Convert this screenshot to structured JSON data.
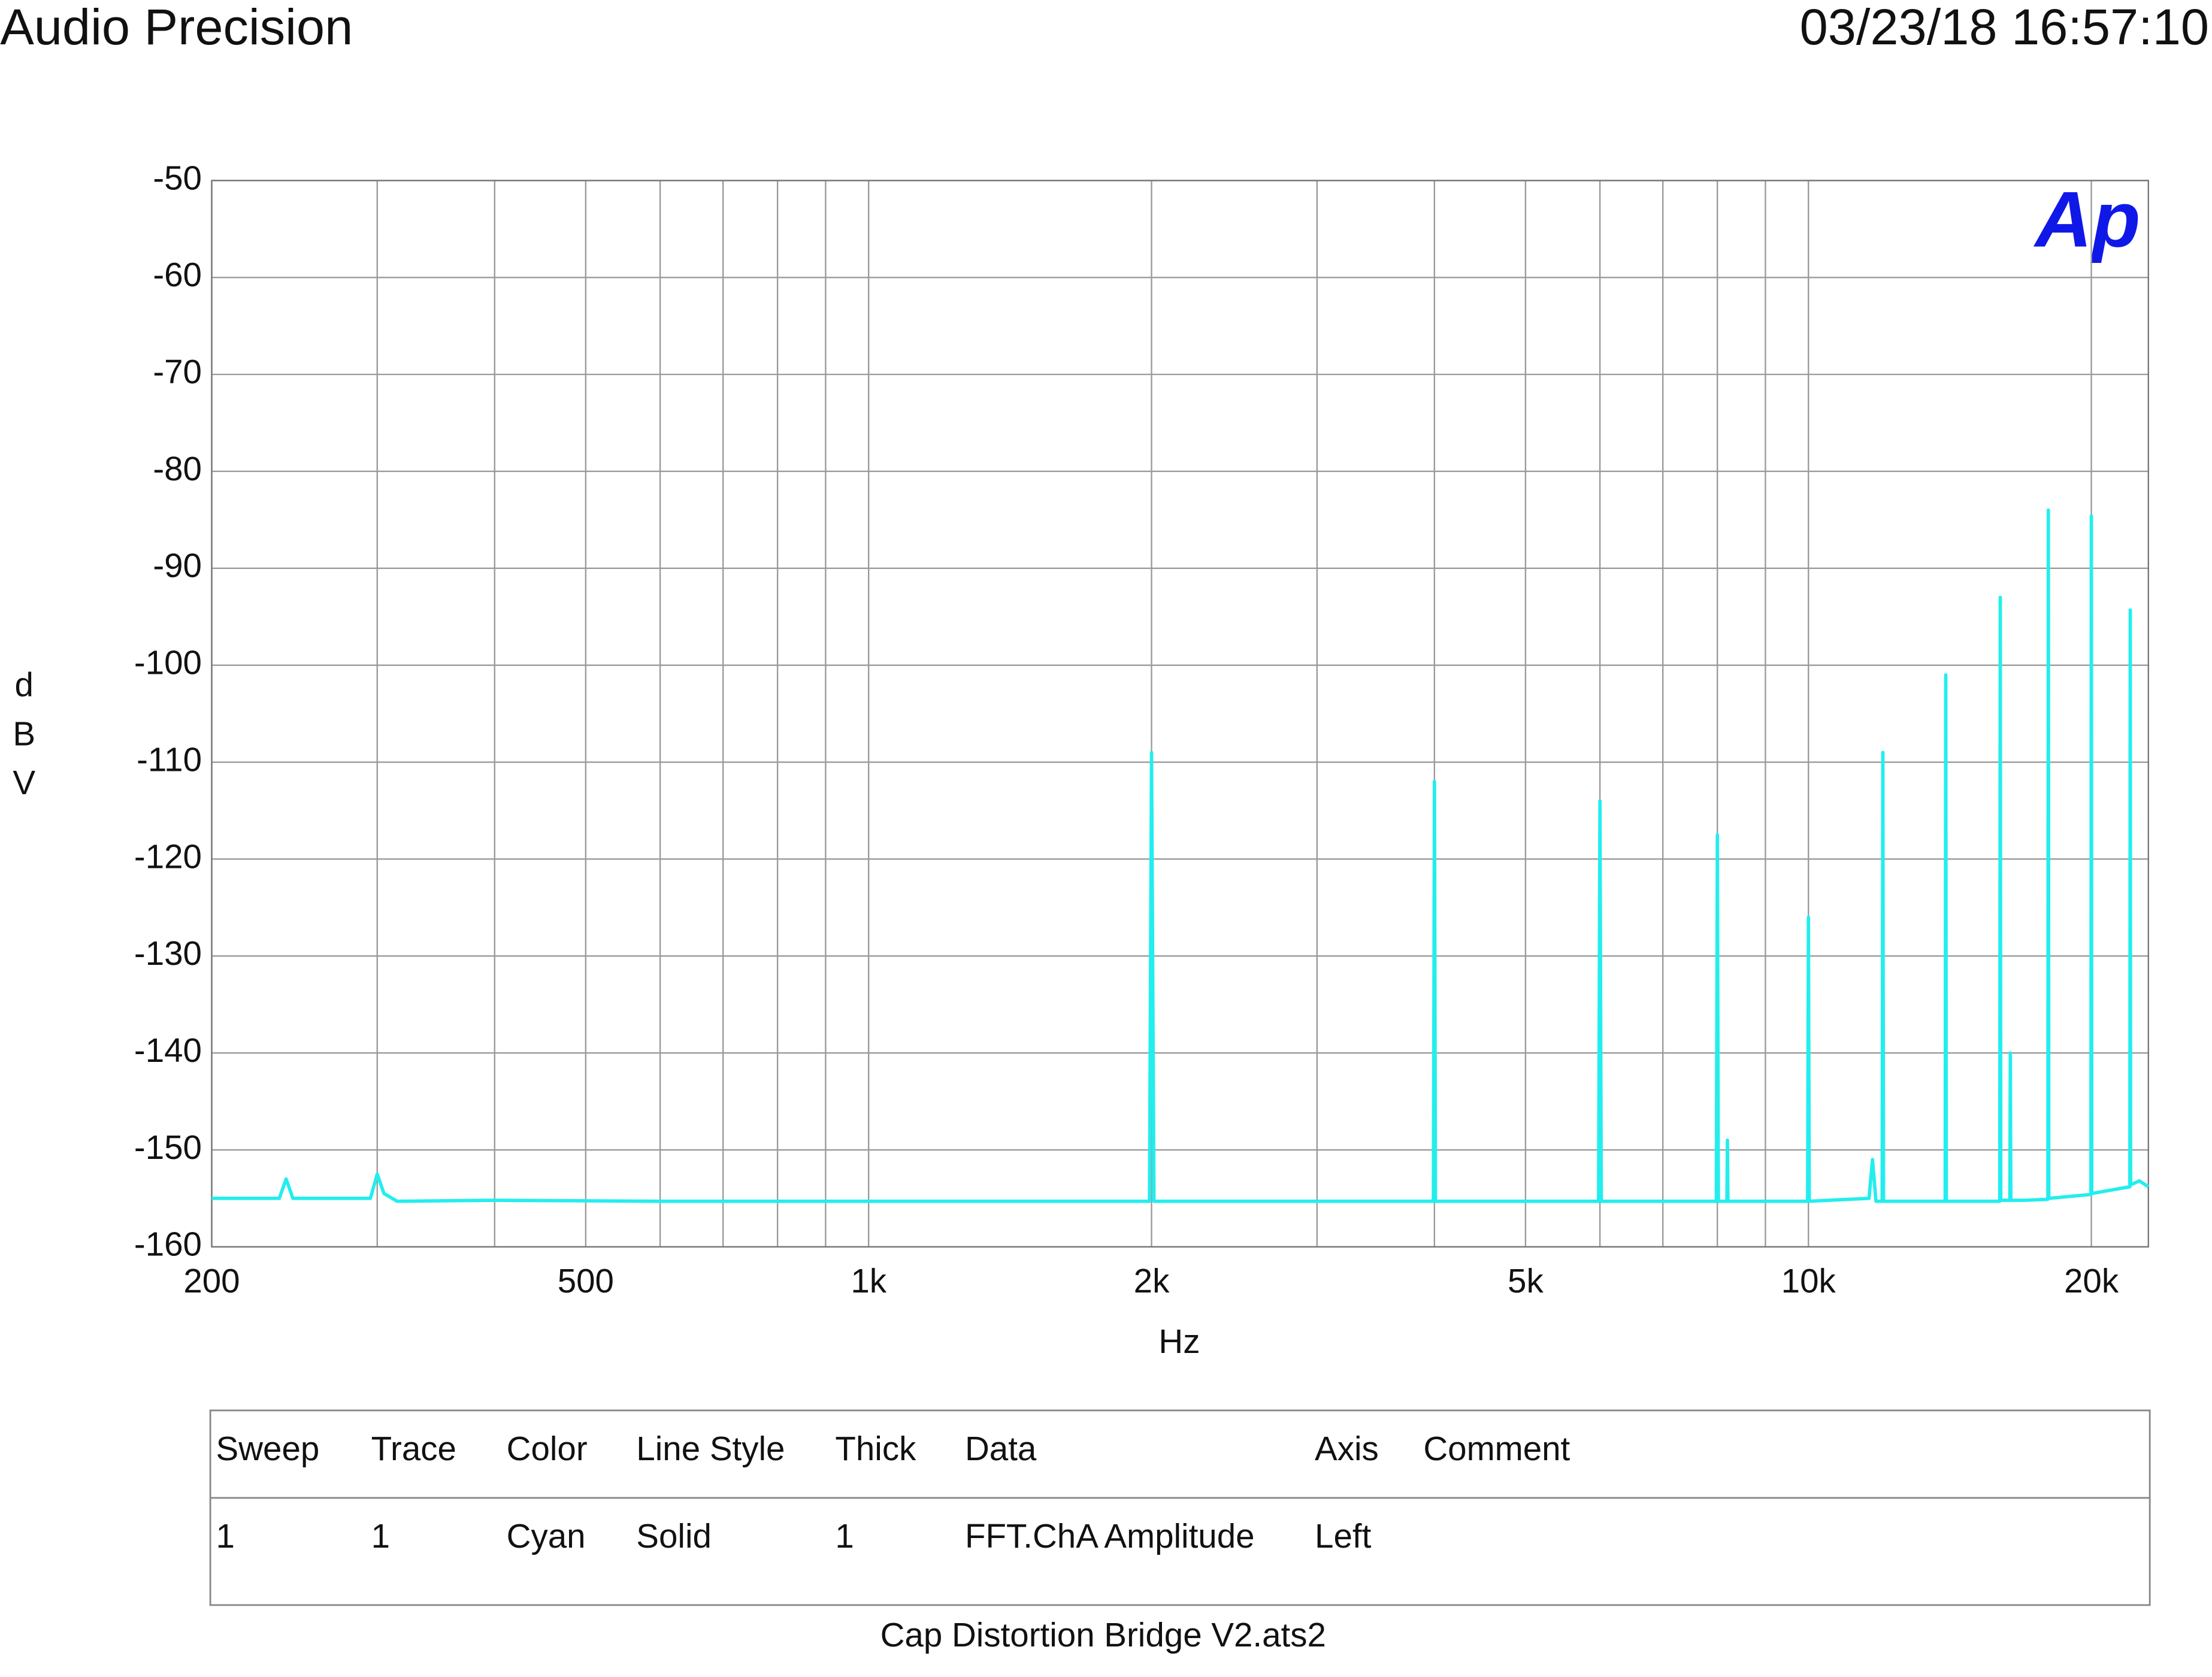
{
  "chart_data": {
    "type": "line",
    "title": "Audio Precision",
    "timestamp": "03/23/18 16:57:10",
    "logo": "Ap",
    "xlabel": "Hz",
    "ylabel": "dBV",
    "xscale": "log",
    "grid": true,
    "xlim": [
      200,
      23000
    ],
    "ylim": [
      -160,
      -50
    ],
    "xticks": [
      200,
      500,
      {
        "value": 1000,
        "label": "1k"
      },
      {
        "value": 2000,
        "label": "2k"
      },
      {
        "value": 5000,
        "label": "5k"
      },
      {
        "value": 10000,
        "label": "10k"
      },
      {
        "value": 20000,
        "label": "20k"
      }
    ],
    "xminor_grid": [
      300,
      400,
      600,
      700,
      800,
      900,
      3000,
      4000,
      6000,
      7000,
      8000,
      9000
    ],
    "yticks": [
      -50,
      -60,
      -70,
      -80,
      -90,
      -100,
      -110,
      -120,
      -130,
      -140,
      -150,
      -160
    ],
    "series": [
      {
        "name": "FFT.ChA Amplitude",
        "color": "#22eeee",
        "x": [
          200,
          236,
          240,
          244,
          295,
          300,
          305,
          315,
          400,
          600,
          1990,
          2000,
          2012,
          3990,
          4000,
          4010,
          5980,
          6000,
          6020,
          7980,
          8000,
          8020,
          8190,
          8200,
          8210,
          9980,
          10000,
          10020,
          11600,
          11700,
          11800,
          11980,
          12000,
          12020,
          13980,
          14000,
          14020,
          15980,
          16000,
          16020,
          16380,
          16400,
          16420,
          17000,
          17980,
          18000,
          18020,
          19980,
          20000,
          20020,
          21980,
          22000,
          22020,
          22500,
          23000
        ],
        "values": [
          -155,
          -155,
          -153,
          -155,
          -155,
          -152.5,
          -154.5,
          -155.3,
          -155.2,
          -155.3,
          -155.3,
          -109,
          -155.3,
          -155.3,
          -112,
          -155.3,
          -155.3,
          -114,
          -155.3,
          -155.3,
          -117.5,
          -155.3,
          -155.3,
          -149,
          -155.3,
          -155.3,
          -126,
          -155.3,
          -155,
          -151,
          -155.3,
          -155.3,
          -109,
          -155.3,
          -155.3,
          -101,
          -155.3,
          -155.3,
          -93,
          -155.2,
          -155.2,
          -140,
          -155.2,
          -155.2,
          -155.1,
          -84,
          -155,
          -154.6,
          -84.6,
          -154.5,
          -153.8,
          -94.3,
          -153.6,
          -153.2,
          -153.8
        ]
      }
    ]
  },
  "table": {
    "columns": [
      "Sweep",
      "Trace",
      "Color",
      "Line Style",
      "Thick",
      "Data",
      "Axis",
      "Comment"
    ],
    "rows": [
      [
        "1",
        "1",
        "Cyan",
        "Solid",
        "1",
        "FFT.ChA Amplitude",
        "Left"
      ]
    ]
  },
  "footer": "Cap Distortion Bridge V2.ats2"
}
